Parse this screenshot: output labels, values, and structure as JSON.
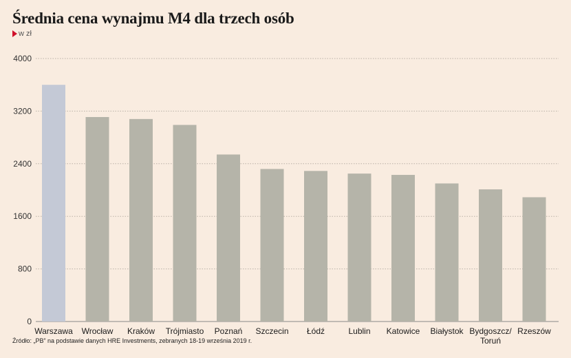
{
  "title": "Średnia cena wynajmu M4 dla trzech osób",
  "unit": "w zł",
  "source": "Źródło: „PB” na podstawie danych HRE Investments, zebranych 18-19 września 2019 r.",
  "colors": {
    "background": "#f9ece0",
    "highlight_bar": "#c4c9d6",
    "bar": "#b5b4a9",
    "grid": "#b9b0a6",
    "unit_marker": "#d0102a"
  },
  "chart_data": {
    "type": "bar",
    "title": "Średnia cena wynajmu M4 dla trzech osób",
    "ylabel": "w zł",
    "xlabel": "",
    "ylim": [
      0,
      4000
    ],
    "yticks": [
      0,
      800,
      1600,
      2400,
      3200,
      4000
    ],
    "grid": true,
    "highlight_index": 0,
    "categories": [
      "Warszawa",
      "Wrocław",
      "Kraków",
      "Trójmiasto",
      "Poznań",
      "Szczecin",
      "Łódź",
      "Lublin",
      "Katowice",
      "Białystok",
      "Bydgoszcz/\nToruń",
      "Rzeszów"
    ],
    "values": [
      3600,
      3110,
      3080,
      2990,
      2540,
      2320,
      2290,
      2250,
      2230,
      2100,
      2010,
      1890
    ]
  }
}
